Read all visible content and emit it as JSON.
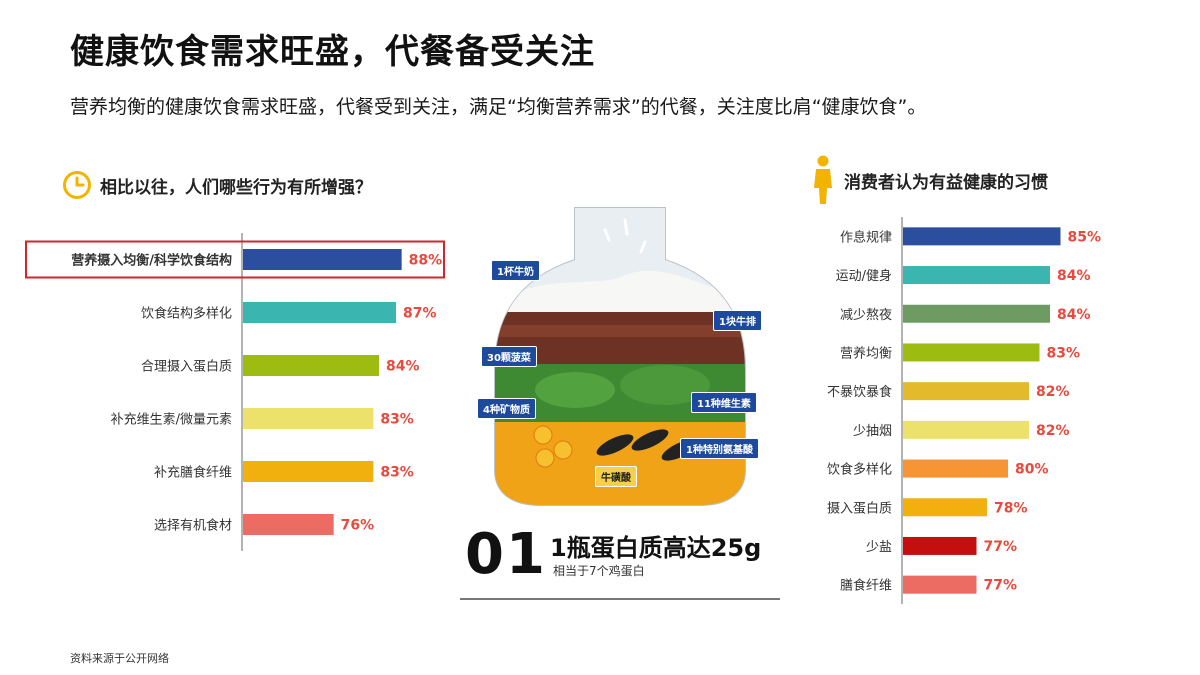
{
  "page": {
    "title": "健康饮食需求旺盛，代餐备受关注",
    "subtitle": "营养均衡的健康饮食需求旺盛，代餐受到关注，满足“均衡营养需求”的代餐，关注度比肩“健康饮食”。",
    "source": "资料来源于公开网络"
  },
  "left_section": {
    "heading": "相比以往，人们哪些行为有所增强？",
    "icon": "clock-icon",
    "icon_color": "#f3b400"
  },
  "right_section": {
    "heading": "消费者认为有益健康的习惯",
    "icon": "person-icon",
    "icon_color": "#f3b400"
  },
  "center": {
    "tags": [
      "1杯牛奶",
      "1块牛排",
      "30颗菠菜",
      "11种维生素",
      "4种矿物质",
      "1种特别氨基酸",
      "牛磺酸"
    ],
    "number": "01",
    "headline": "1瓶蛋白质高达25g",
    "note": "相当于7个鸡蛋白"
  },
  "chart_data": [
    {
      "type": "bar",
      "orientation": "horizontal",
      "title": "相比以往，人们哪些行为有所增强？",
      "categories": [
        "营养摄入均衡/科学饮食结构",
        "饮食结构多样化",
        "合理摄入蛋白质",
        "补充维生素/微量元素",
        "补充膳食纤维",
        "选择有机食材"
      ],
      "values": [
        88,
        87,
        84,
        83,
        83,
        76
      ],
      "labels": [
        "88%",
        "87%",
        "84%",
        "83%",
        "83%",
        "76%"
      ],
      "colors": [
        "#2b4e9e",
        "#3bb5b0",
        "#9dbb10",
        "#ece16a",
        "#f2b00f",
        "#ec6b62"
      ],
      "highlight_index": 0,
      "highlight_color": "#d0262c",
      "label_color": "#e84a3d",
      "xlim": [
        60,
        90
      ]
    },
    {
      "type": "bar",
      "orientation": "horizontal",
      "title": "消费者认为有益健康的习惯",
      "categories": [
        "作息规律",
        "运动/健身",
        "减少熬夜",
        "营养均衡",
        "不暴饮暴食",
        "少抽烟",
        "饮食多样化",
        "摄入蛋白质",
        "少盐",
        "膳食纤维"
      ],
      "values": [
        85,
        84,
        84,
        83,
        82,
        82,
        80,
        78,
        77,
        77
      ],
      "labels": [
        "85%",
        "84%",
        "84%",
        "83%",
        "82%",
        "82%",
        "80%",
        "78%",
        "77%",
        "77%"
      ],
      "colors": [
        "#2b4e9e",
        "#3bb5b0",
        "#6e9b62",
        "#9dbb10",
        "#e3ba2b",
        "#ece16a",
        "#f79433",
        "#f2b00f",
        "#c50f0f",
        "#ec6b62"
      ],
      "label_color": "#e84a3d",
      "xlim": [
        70,
        86
      ]
    }
  ]
}
